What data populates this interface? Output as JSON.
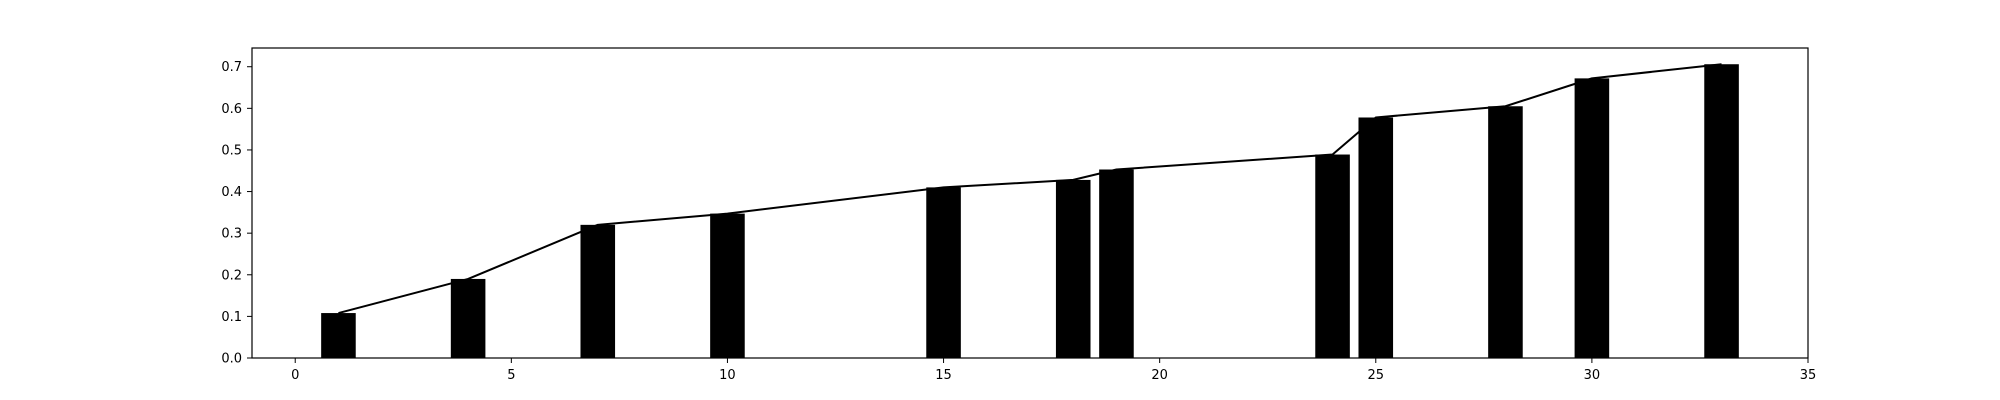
{
  "chart_data": {
    "type": "bar",
    "title": "",
    "xlabel": "",
    "ylabel": "",
    "xlim": [
      -1,
      35
    ],
    "ylim": [
      0,
      0.745
    ],
    "x_ticks": [
      0,
      5,
      10,
      15,
      20,
      25,
      30,
      35
    ],
    "y_ticks": [
      0.0,
      0.1,
      0.2,
      0.3,
      0.4,
      0.5,
      0.6,
      0.7
    ],
    "x_tick_labels": [
      "0",
      "5",
      "10",
      "15",
      "20",
      "25",
      "30",
      "35"
    ],
    "y_tick_labels": [
      "0.0",
      "0.1",
      "0.2",
      "0.3",
      "0.4",
      "0.5",
      "0.6",
      "0.7"
    ],
    "bar_width": 0.8,
    "grid": false,
    "series": [
      {
        "type": "bar",
        "x": [
          1,
          4,
          7,
          10,
          15,
          18,
          19,
          24,
          25,
          28,
          30,
          33
        ],
        "values": [
          0.108,
          0.19,
          0.32,
          0.347,
          0.41,
          0.428,
          0.453,
          0.489,
          0.578,
          0.605,
          0.672,
          0.706
        ],
        "color": "#000000"
      },
      {
        "type": "line",
        "x": [
          1,
          4,
          7,
          10,
          15,
          18,
          19,
          24,
          25,
          28,
          30,
          33
        ],
        "values": [
          0.108,
          0.19,
          0.32,
          0.347,
          0.41,
          0.428,
          0.453,
          0.489,
          0.578,
          0.605,
          0.672,
          0.706
        ],
        "color": "#000000"
      }
    ]
  }
}
